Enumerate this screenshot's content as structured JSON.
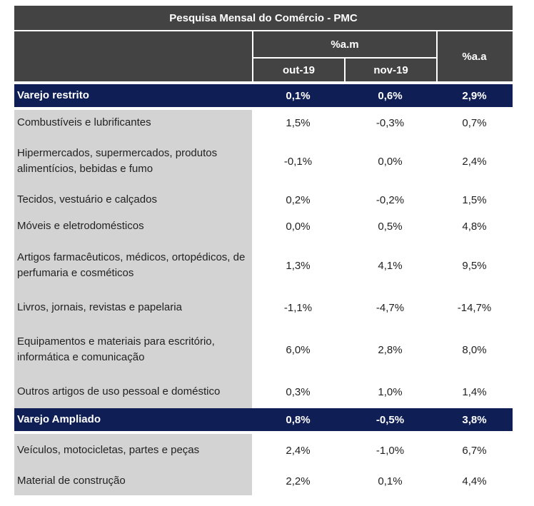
{
  "title": "Pesquisa Mensal do Comércio - PMC",
  "header": {
    "am_label": "%a.m",
    "aa_label": "%a.a",
    "col1": "out-19",
    "col2": "nov-19"
  },
  "sections": [
    {
      "name": "Varejo restrito",
      "values": [
        "0,1%",
        "0,6%",
        "2,9%"
      ],
      "rows": [
        {
          "label": "Combustíveis e lubrificantes",
          "values": [
            "1,5%",
            "-0,3%",
            "0,7%"
          ]
        },
        {
          "label": "Hipermercados, supermercados, produtos alimentícios, bebidas e fumo",
          "values": [
            "-0,1%",
            "0,0%",
            "2,4%"
          ]
        },
        {
          "label": "Tecidos, vestuário e calçados",
          "values": [
            "0,2%",
            "-0,2%",
            "1,5%"
          ]
        },
        {
          "label": "Móveis e eletrodomésticos",
          "values": [
            "0,0%",
            "0,5%",
            "4,8%"
          ]
        },
        {
          "label": "Artigos farmacêuticos, médicos, ortopédicos, de perfumaria e cosméticos",
          "values": [
            "1,3%",
            "4,1%",
            "9,5%"
          ]
        },
        {
          "label": "Livros, jornais, revistas e papelaria",
          "values": [
            "-1,1%",
            "-4,7%",
            "-14,7%"
          ]
        },
        {
          "label": "Equipamentos e materiais para escritório, informática e comunicação",
          "values": [
            "6,0%",
            "2,8%",
            "8,0%"
          ]
        },
        {
          "label": "Outros artigos de uso pessoal e doméstico",
          "values": [
            "0,3%",
            "1,0%",
            "1,4%"
          ]
        }
      ]
    },
    {
      "name": "Varejo Ampliado",
      "values": [
        "0,8%",
        "-0,5%",
        "3,8%"
      ],
      "rows": [
        {
          "label": "Veículos, motocicletas, partes e peças",
          "values": [
            "2,4%",
            "-1,0%",
            "6,7%"
          ]
        },
        {
          "label": "Material de construção",
          "values": [
            "2,2%",
            "0,1%",
            "4,4%"
          ]
        }
      ]
    }
  ]
}
